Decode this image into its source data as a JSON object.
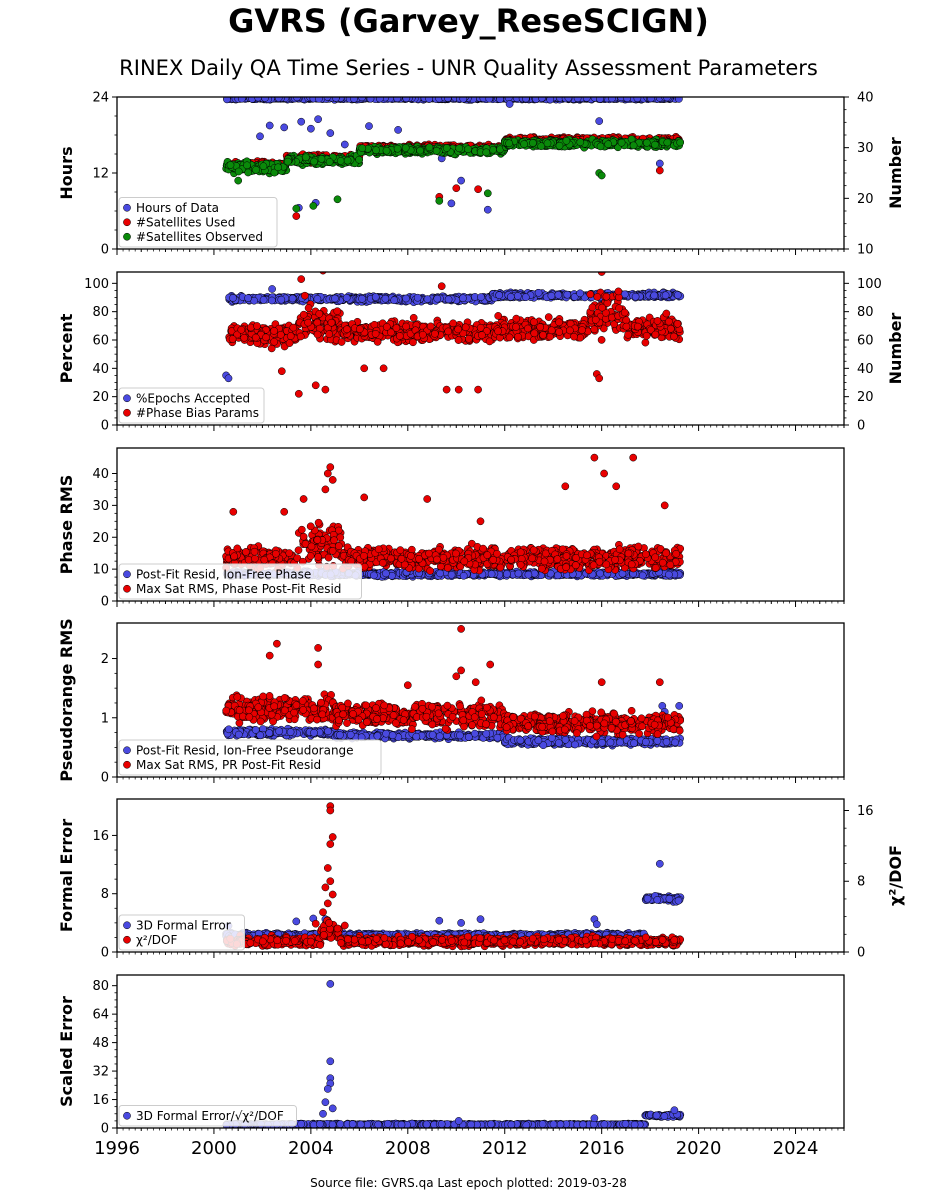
{
  "title": "GVRS (Garvey_ReseSCIGN)",
  "subtitle": "RINEX Daily QA Time Series - UNR Quality Assessment Parameters",
  "footer": "Source file: GVRS.qa Last epoch plotted: 2019-03-28",
  "colors": {
    "blue": "#4a4ae0",
    "red": "#e80000",
    "green": "#0a8a0a",
    "edge": "#000000"
  },
  "chart_data": [
    {
      "type": "scatter",
      "id": "hours",
      "ylabel": "Hours",
      "ylabel_right": "Number",
      "xlim": [
        1996,
        2026
      ],
      "ylim": [
        0,
        24
      ],
      "yticks": [
        0,
        12,
        24
      ],
      "ylim_right": [
        10,
        40
      ],
      "yticks_right": [
        10,
        20,
        30,
        40
      ],
      "legend": [
        "Hours of Data",
        "#Satellites Used",
        "#Satellites Observed"
      ],
      "series": [
        {
          "name": "Hours of Data",
          "color": "blue",
          "axis": "left",
          "segments": [
            [
              2000.5,
              2019.25,
              23.8,
              0.3
            ]
          ],
          "outliers": [
            [
              2001.9,
              17.8
            ],
            [
              2002.3,
              19.5
            ],
            [
              2002.9,
              19.2
            ],
            [
              2003.6,
              20.1
            ],
            [
              2004.0,
              19.0
            ],
            [
              2004.3,
              20.5
            ],
            [
              2004.8,
              18.3
            ],
            [
              2005.4,
              16.5
            ],
            [
              2006.4,
              19.4
            ],
            [
              2007.6,
              18.8
            ],
            [
              2009.4,
              14.3
            ],
            [
              2010.2,
              10.8
            ],
            [
              2012.2,
              22.9
            ],
            [
              2015.9,
              20.2
            ],
            [
              2018.4,
              13.5
            ],
            [
              2003.5,
              6.5
            ],
            [
              2004.2,
              7.3
            ],
            [
              2009.8,
              7.2
            ],
            [
              2011.3,
              6.2
            ]
          ]
        },
        {
          "name": "#Satellites Used",
          "color": "red",
          "axis": "right",
          "segments": [
            [
              2000.5,
              2003.0,
              26.5,
              1.0
            ],
            [
              2003.0,
              2006.0,
              28.0,
              1.0
            ],
            [
              2006.0,
              2012.0,
              30.0,
              0.8
            ],
            [
              2012.0,
              2019.25,
              31.5,
              0.8
            ]
          ],
          "outliers": [
            [
              2003.4,
              16.5
            ],
            [
              2009.3,
              20.3
            ],
            [
              2010.0,
              22.0
            ],
            [
              2010.9,
              21.8
            ],
            [
              2004.0,
              27.0
            ],
            [
              2018.4,
              25.5
            ]
          ]
        },
        {
          "name": "#Satellites Observed",
          "color": "green",
          "axis": "right",
          "segments": [
            [
              2000.5,
              2003.0,
              26.0,
              1.5
            ],
            [
              2003.0,
              2006.0,
              27.5,
              1.2
            ],
            [
              2006.0,
              2012.0,
              29.5,
              1.0
            ],
            [
              2012.0,
              2019.25,
              30.8,
              1.0
            ]
          ],
          "outliers": [
            [
              2003.4,
              18.0
            ],
            [
              2004.1,
              18.5
            ],
            [
              2005.1,
              19.8
            ],
            [
              2015.9,
              25.0
            ],
            [
              2016.0,
              24.5
            ],
            [
              2011.3,
              21.0
            ],
            [
              2009.3,
              19.5
            ],
            [
              2001.0,
              23.5
            ]
          ]
        }
      ]
    },
    {
      "type": "scatter",
      "id": "percent",
      "ylabel": "Percent",
      "ylabel_right": "Number",
      "xlim": [
        1996,
        2026
      ],
      "ylim": [
        0,
        108
      ],
      "yticks": [
        0,
        20,
        40,
        60,
        80,
        100
      ],
      "ylim_right": [
        0,
        108
      ],
      "yticks_right": [
        0,
        20,
        40,
        60,
        80,
        100
      ],
      "legend": [
        "%Epochs Accepted",
        "#Phase Bias Params"
      ],
      "series": [
        {
          "name": "%Epochs Accepted",
          "color": "blue",
          "axis": "left",
          "segments": [
            [
              2000.6,
              2011.5,
              89.0,
              2.5
            ],
            [
              2011.5,
              2019.25,
              91.5,
              2.5
            ]
          ],
          "outliers": [
            [
              2000.5,
              35.0
            ],
            [
              2000.6,
              33.0
            ],
            [
              2002.4,
              96.0
            ]
          ]
        },
        {
          "name": "#Phase Bias Params",
          "color": "red",
          "axis": "right",
          "segments": [
            [
              2000.6,
              2003.5,
              64.0,
              12.0
            ],
            [
              2003.5,
              2005.2,
              72.0,
              20.0
            ],
            [
              2005.2,
              2011.5,
              66.0,
              10.0
            ],
            [
              2011.5,
              2015.5,
              68.0,
              10.0
            ],
            [
              2015.5,
              2017.0,
              80.0,
              25.0
            ],
            [
              2017.0,
              2019.25,
              68.0,
              12.0
            ]
          ],
          "outliers": [
            [
              2003.5,
              22.0
            ],
            [
              2002.8,
              38.0
            ],
            [
              2004.2,
              28.0
            ],
            [
              2004.6,
              25.0
            ],
            [
              2009.6,
              25.0
            ],
            [
              2010.1,
              25.0
            ],
            [
              2010.9,
              25.0
            ],
            [
              2016.0,
              108.0
            ],
            [
              2003.6,
              103.0
            ],
            [
              2004.5,
              109.0
            ],
            [
              2009.4,
              98.0
            ],
            [
              2015.8,
              36.0
            ],
            [
              2015.9,
              33.0
            ],
            [
              2007.0,
              40.0
            ],
            [
              2006.2,
              40.0
            ]
          ]
        }
      ]
    },
    {
      "type": "scatter",
      "id": "phase",
      "ylabel": "Phase RMS",
      "ylabel_right": "",
      "xlim": [
        1996,
        2026
      ],
      "ylim": [
        0,
        48
      ],
      "yticks": [
        0,
        10,
        20,
        30,
        40
      ],
      "legend": [
        "Post-Fit Resid, Ion-Free Phase",
        "Max Sat RMS, Phase Post-Fit Resid"
      ],
      "series": [
        {
          "name": "Post-Fit Resid, Ion-Free Phase",
          "color": "blue",
          "axis": "left",
          "segments": [
            [
              2000.5,
              2019.25,
              8.5,
              1.0
            ]
          ],
          "outliers": []
        },
        {
          "name": "Max Sat RMS, Phase Post-Fit Resid",
          "color": "red",
          "axis": "left",
          "segments": [
            [
              2000.5,
              2003.5,
              13.5,
              5.0
            ],
            [
              2003.5,
              2005.3,
              18.0,
              9.0
            ],
            [
              2005.3,
              2019.25,
              13.5,
              5.0
            ]
          ],
          "outliers": [
            [
              2004.8,
              42.0
            ],
            [
              2004.7,
              40.0
            ],
            [
              2004.9,
              38.0
            ],
            [
              2004.6,
              35.0
            ],
            [
              2003.7,
              32.0
            ],
            [
              2006.2,
              32.5
            ],
            [
              2008.8,
              32.0
            ],
            [
              2015.7,
              45.0
            ],
            [
              2016.1,
              40.0
            ],
            [
              2017.3,
              45.0
            ],
            [
              2014.5,
              36.0
            ],
            [
              2016.6,
              36.0
            ],
            [
              2018.6,
              30.0
            ],
            [
              2000.8,
              28.0
            ],
            [
              2002.9,
              28.0
            ],
            [
              2011.0,
              25.0
            ]
          ]
        }
      ]
    },
    {
      "type": "scatter",
      "id": "pseudorange",
      "ylabel": "Pseudorange RMS",
      "ylabel_right": "",
      "xlim": [
        1996,
        2026
      ],
      "ylim": [
        0,
        2.6
      ],
      "yticks": [
        0,
        1,
        2
      ],
      "legend": [
        "Post-Fit Resid, Ion-Free Pseudorange",
        "Max Sat RMS, PR Post-Fit Resid"
      ],
      "series": [
        {
          "name": "Post-Fit Resid, Ion-Free Pseudorange",
          "color": "blue",
          "axis": "left",
          "segments": [
            [
              2000.5,
              2005.0,
              0.75,
              0.08
            ],
            [
              2005.0,
              2012.0,
              0.7,
              0.07
            ],
            [
              2012.0,
              2019.25,
              0.6,
              0.08
            ]
          ],
          "outliers": [
            [
              2018.5,
              1.2
            ],
            [
              2018.6,
              1.1
            ],
            [
              2019.2,
              1.2
            ]
          ]
        },
        {
          "name": "Max Sat RMS, PR Post-Fit Resid",
          "color": "red",
          "axis": "left",
          "segments": [
            [
              2000.5,
              2005.0,
              1.15,
              0.3
            ],
            [
              2005.0,
              2012.0,
              1.05,
              0.3
            ],
            [
              2012.0,
              2019.25,
              0.9,
              0.25
            ]
          ],
          "outliers": [
            [
              2010.2,
              2.5
            ],
            [
              2002.6,
              2.25
            ],
            [
              2002.3,
              2.05
            ],
            [
              2004.3,
              2.18
            ],
            [
              2004.3,
              1.9
            ],
            [
              2010.2,
              1.8
            ],
            [
              2011.4,
              1.9
            ],
            [
              2010.0,
              1.7
            ],
            [
              2010.8,
              1.6
            ],
            [
              2016.0,
              1.6
            ],
            [
              2018.4,
              1.6
            ],
            [
              2008.0,
              1.55
            ]
          ]
        }
      ]
    },
    {
      "type": "scatter",
      "id": "formal",
      "ylabel": "Formal Error",
      "ylabel_right": "χ²/DOF",
      "xlim": [
        1996,
        2026
      ],
      "ylim": [
        0,
        21
      ],
      "yticks": [
        0,
        8,
        16
      ],
      "ylim_right": [
        0,
        17.3
      ],
      "yticks_right": [
        0,
        8,
        16
      ],
      "legend": [
        "3D Formal Error",
        "χ²/DOF"
      ],
      "series": [
        {
          "name": "3D Formal Error",
          "color": "blue",
          "axis": "left",
          "segments": [
            [
              2000.5,
              2017.8,
              2.3,
              0.4
            ],
            [
              2017.8,
              2019.25,
              7.3,
              0.6
            ]
          ],
          "outliers": [
            [
              2000.6,
              3.6
            ],
            [
              2003.4,
              4.2
            ],
            [
              2004.1,
              4.6
            ],
            [
              2009.3,
              4.3
            ],
            [
              2010.2,
              4.0
            ],
            [
              2011.0,
              4.5
            ],
            [
              2015.7,
              4.5
            ],
            [
              2015.8,
              3.8
            ],
            [
              2018.4,
              12.1
            ],
            [
              2004.6,
              4.5
            ]
          ]
        },
        {
          "name": "χ²/DOF",
          "color": "red",
          "axis": "right",
          "segments": [
            [
              2000.5,
              2004.4,
              1.2,
              0.7
            ],
            [
              2004.4,
              2005.2,
              2.5,
              1.5
            ],
            [
              2005.2,
              2019.25,
              1.2,
              0.7
            ]
          ],
          "outliers": [
            [
              2004.8,
              16.5
            ],
            [
              2004.8,
              16.0
            ],
            [
              2004.9,
              13.0
            ],
            [
              2004.8,
              12.2
            ],
            [
              2004.7,
              9.5
            ],
            [
              2004.8,
              8.0
            ],
            [
              2004.6,
              7.3
            ],
            [
              2004.9,
              6.5
            ],
            [
              2004.7,
              5.5
            ],
            [
              2004.5,
              4.5
            ],
            [
              2005.4,
              3.0
            ],
            [
              2004.2,
              3.2
            ]
          ]
        }
      ]
    },
    {
      "type": "scatter",
      "id": "scaled",
      "ylabel": "Scaled Error",
      "ylabel_right": "",
      "xlim": [
        1996,
        2026
      ],
      "ylim": [
        0,
        86
      ],
      "yticks": [
        0,
        16,
        32,
        48,
        64,
        80
      ],
      "xticks": [
        1996,
        2000,
        2004,
        2008,
        2012,
        2016,
        2020,
        2024
      ],
      "legend": [
        "3D Formal Error/√χ²/DOF"
      ],
      "series": [
        {
          "name": "3D Formal Error/√χ²/DOF",
          "color": "blue",
          "axis": "left",
          "segments": [
            [
              2000.5,
              2017.8,
              2.0,
              0.6
            ],
            [
              2017.8,
              2019.25,
              7.0,
              1.0
            ]
          ],
          "outliers": [
            [
              2004.8,
              81.0
            ],
            [
              2004.8,
              37.5
            ],
            [
              2004.8,
              28.0
            ],
            [
              2004.8,
              25.0
            ],
            [
              2004.7,
              22.0
            ],
            [
              2004.6,
              14.5
            ],
            [
              2004.9,
              11.0
            ],
            [
              2004.5,
              8.0
            ],
            [
              2015.7,
              5.5
            ],
            [
              2010.1,
              4.0
            ],
            [
              2019.0,
              10.0
            ]
          ]
        }
      ]
    }
  ]
}
